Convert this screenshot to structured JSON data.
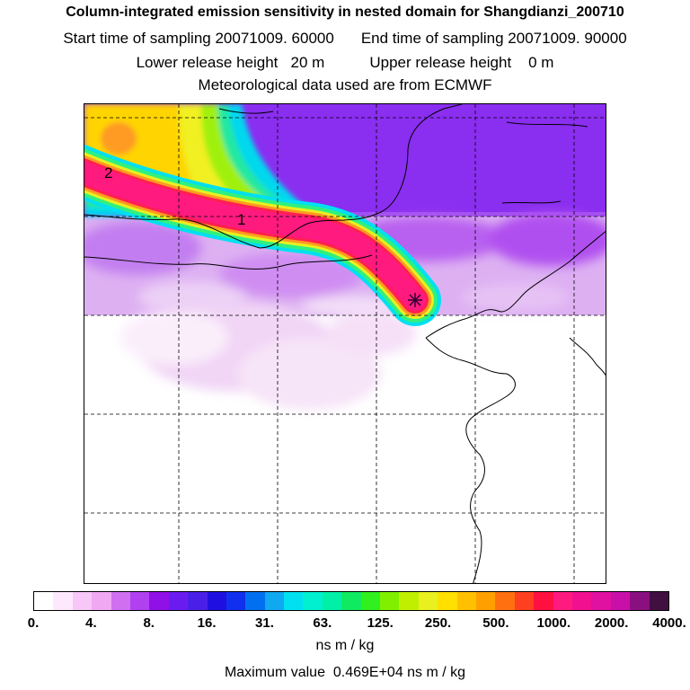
{
  "header": {
    "title": "Column-integrated emission sensitivity in nested domain for Shangdianzi_200710",
    "start_label": "Start time of sampling 20071009. 60000",
    "end_label": "End time of sampling 20071009. 90000",
    "lower_label": "Lower release height   20 m",
    "upper_label": "Upper release height    0 m",
    "met_label": "Meteorological data used are from ECMWF"
  },
  "map": {
    "contour_labels": [
      "2",
      "1"
    ],
    "background_color": "#ffffff",
    "plume_color": "#ff1a80",
    "domain_fill": "#a030ff"
  },
  "colorbar": {
    "colors": [
      "#ffffff",
      "#fde8fd",
      "#f7c8f7",
      "#f0a8f4",
      "#d070f0",
      "#b040f0",
      "#9010e8",
      "#6a1cf0",
      "#4a20e8",
      "#2010e0",
      "#1030ee",
      "#0070f0",
      "#10a8f0",
      "#00e0f0",
      "#00f0d0",
      "#00f0a8",
      "#10ea60",
      "#30f020",
      "#80f000",
      "#c0f000",
      "#e8f020",
      "#ffe000",
      "#ffc000",
      "#ffa000",
      "#ff7010",
      "#ff4020",
      "#ff1040",
      "#ff1a80",
      "#f01090",
      "#e010a0",
      "#c810a8",
      "#8a1080",
      "#401040"
    ],
    "ticks": [
      "0.",
      "4.",
      "8.",
      "16.",
      "31.",
      "63.",
      "125.",
      "250.",
      "500.",
      "1000.",
      "2000.",
      "4000."
    ],
    "units": "ns m / kg"
  },
  "footer": {
    "max_label": "Maximum value",
    "max_value": "0.469E+04 ns m / kg"
  }
}
